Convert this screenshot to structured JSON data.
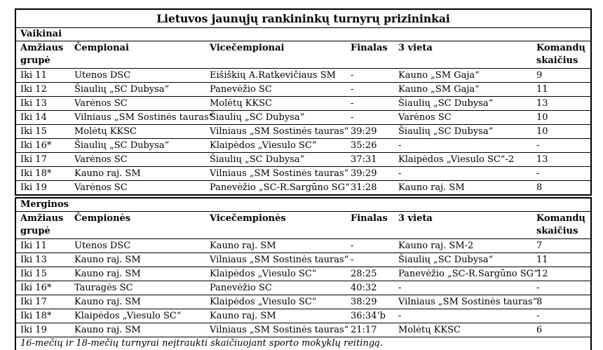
{
  "title": "Lietuvos jaunųjų rankininkų turnyrų prizininkai",
  "colors": {
    "background": "#ffffff",
    "text": "#000000",
    "border": "#000000"
  },
  "tables": [
    {
      "section": "Vaikinai",
      "headers": [
        "Amžiaus grupė",
        "Čempionai",
        "Vicečempionai",
        "Finalas",
        "3 vieta",
        "Komandų skaičius"
      ],
      "rows": [
        [
          "Iki 11",
          "Utenos DSC",
          "Eišiškių A.Ratkevičiaus SM",
          "-",
          "Kauno „SM Gaja“",
          "9"
        ],
        [
          "Iki 12",
          "Šiaulių „SC Dubysa“",
          "Panevėžio SC",
          "-",
          "Kauno „SM Gaja“",
          "11"
        ],
        [
          "Iki 13",
          "Varėnos SC",
          "Molėtų KKSC",
          "-",
          "Šiaulių „SC Dubysa“",
          "13"
        ],
        [
          "Iki 14",
          "Vilniaus „SM Sostinės tauras“",
          "Šiaulių „SC Dubysa“",
          "-",
          "Varėnos SC",
          "10"
        ],
        [
          "Iki 15",
          "Molėtų KKSC",
          "Vilniaus „SM Sostinės tauras“",
          "39:29",
          "Šiaulių „SC Dubysa“",
          "10"
        ],
        [
          "Iki 16*",
          "Šiaulių „SC Dubysa“",
          "Klaipėdos „Viesulo SC“",
          "35:26",
          "-",
          "-"
        ],
        [
          "Iki 17",
          "Varėnos SC",
          "Šiaulių „SC Dubysa“",
          "37:31",
          "Klaipėdos „Viesulo SC“-2",
          "13"
        ],
        [
          "Iki 18*",
          "Kauno raj. SM",
          "Vilniaus „SM Sostinės tauras“",
          "39:29",
          "-",
          "-"
        ],
        [
          "Iki 19",
          "Varėnos SC",
          "Panevėžio „SC-R.Sargūno SG“",
          "31:28",
          "Kauno raj. SM",
          "8"
        ]
      ]
    },
    {
      "section": "Merginos",
      "headers": [
        "Amžiaus grupė",
        "Čempionės",
        "Vicečempionės",
        "Finalas",
        "3 vieta",
        "Komandų skaičius"
      ],
      "rows": [
        [
          "Iki 11",
          "Utenos DSC",
          "Kauno raj. SM",
          "-",
          "Kauno raj. SM-2",
          "7"
        ],
        [
          "Iki 13",
          "Kauno raj. SM",
          "Vilniaus „SM Sostinės tauras“",
          "-",
          "Šiaulių „SC Dubysa“",
          "11"
        ],
        [
          "Iki 15",
          "Kauno raj. SM",
          "Klaipėdos „Viesulo SC“",
          "28:25",
          "Panevėžio „SC-R.Sargūno SG“",
          "12"
        ],
        [
          "Iki 16*",
          "Tauragės SC",
          "Panevėžio SC",
          "40:32",
          "-",
          "-"
        ],
        [
          "Iki 17",
          "Kauno raj. SM",
          "Klaipėdos „Viesulo SC“",
          "38:29",
          "Vilniaus „SM Sostinės tauras“",
          "8"
        ],
        [
          "Iki 18*",
          "Klaipėdos „Viesulo SC“",
          "Kauno raj. SM",
          "36:34‘b",
          "-",
          "-"
        ],
        [
          "Iki 19",
          "Kauno raj. SM",
          "Vilniaus „SM Sostinės tauras“",
          "21:17",
          "Molėtų KKSC",
          "6"
        ]
      ],
      "footnote": "16-mečių ir 18-mečių turnyrai neįtraukti skaičiuojant sporto mokyklų reitingą."
    }
  ]
}
